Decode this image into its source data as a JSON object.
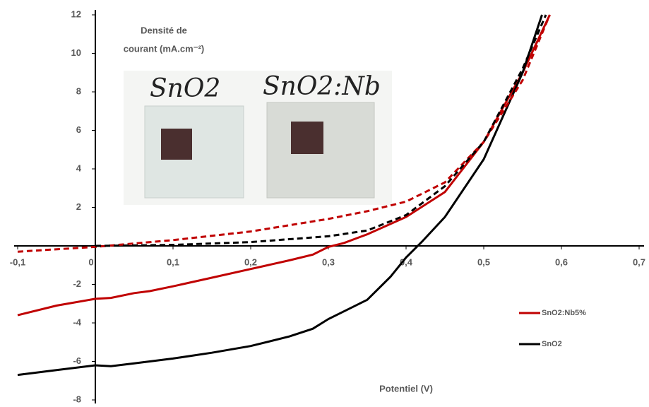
{
  "chart_data": {
    "type": "line",
    "y_label": [
      "Densité de",
      "courant (mA.cm⁻²)"
    ],
    "x_label": "Potentiel (V)",
    "annotations": [
      "SnO2",
      "SnO2:Nb"
    ],
    "xlim": [
      -0.1,
      0.7
    ],
    "xticks": [
      {
        "value": -0.1,
        "label": "-0,1"
      },
      0,
      {
        "value": 0.1,
        "label": "0,1"
      },
      {
        "value": 0.2,
        "label": "0,2"
      },
      {
        "value": 0.3,
        "label": "0,3"
      },
      {
        "value": 0.4,
        "label": "0,4"
      },
      {
        "value": 0.5,
        "label": "0,5"
      },
      {
        "value": 0.6,
        "label": "0,6"
      },
      {
        "value": 0.7,
        "label": "0,7"
      }
    ],
    "ylim": [
      -8,
      12
    ],
    "yticks": [
      -8,
      -6,
      -4,
      -2,
      2,
      4,
      6,
      8,
      10,
      12
    ],
    "series": [
      {
        "name": "SnO2:Nb5%",
        "color": "#c00000",
        "dash": false,
        "x": [
          -0.1,
          -0.05,
          0,
          0.02,
          0.05,
          0.07,
          0.1,
          0.15,
          0.2,
          0.25,
          0.28,
          0.3,
          0.32,
          0.35,
          0.4,
          0.45,
          0.5,
          0.55,
          0.585
        ],
        "values": [
          -3.6,
          -3.1,
          -2.75,
          -2.7,
          -2.45,
          -2.35,
          -2.1,
          -1.65,
          -1.2,
          -0.75,
          -0.45,
          -0.05,
          0.15,
          0.6,
          1.5,
          2.8,
          5.4,
          9.0,
          12
        ]
      },
      {
        "name": "SnO2",
        "color": "#000000",
        "dash": false,
        "x": [
          -0.1,
          -0.05,
          0,
          0.02,
          0.05,
          0.1,
          0.15,
          0.2,
          0.25,
          0.28,
          0.3,
          0.35,
          0.38,
          0.4,
          0.42,
          0.45,
          0.5,
          0.55,
          0.575
        ],
        "values": [
          -6.7,
          -6.45,
          -6.2,
          -6.25,
          -6.1,
          -5.85,
          -5.55,
          -5.2,
          -4.7,
          -4.3,
          -3.8,
          -2.8,
          -1.6,
          -0.6,
          0.2,
          1.5,
          4.5,
          9.0,
          12
        ]
      },
      {
        "color": "#c00000",
        "dash": true,
        "x": [
          -0.1,
          0,
          0.1,
          0.2,
          0.3,
          0.35,
          0.4,
          0.45,
          0.5,
          0.55,
          0.585
        ],
        "values": [
          -0.3,
          -0.05,
          0.3,
          0.75,
          1.4,
          1.8,
          2.3,
          3.3,
          5.4,
          8.6,
          12
        ]
      },
      {
        "color": "#000000",
        "dash": true,
        "x": [
          0,
          0.1,
          0.2,
          0.3,
          0.35,
          0.4,
          0.45,
          0.5,
          0.55,
          0.58
        ],
        "values": [
          0,
          0.05,
          0.2,
          0.5,
          0.8,
          1.6,
          3.1,
          5.4,
          9.2,
          12
        ]
      }
    ]
  }
}
